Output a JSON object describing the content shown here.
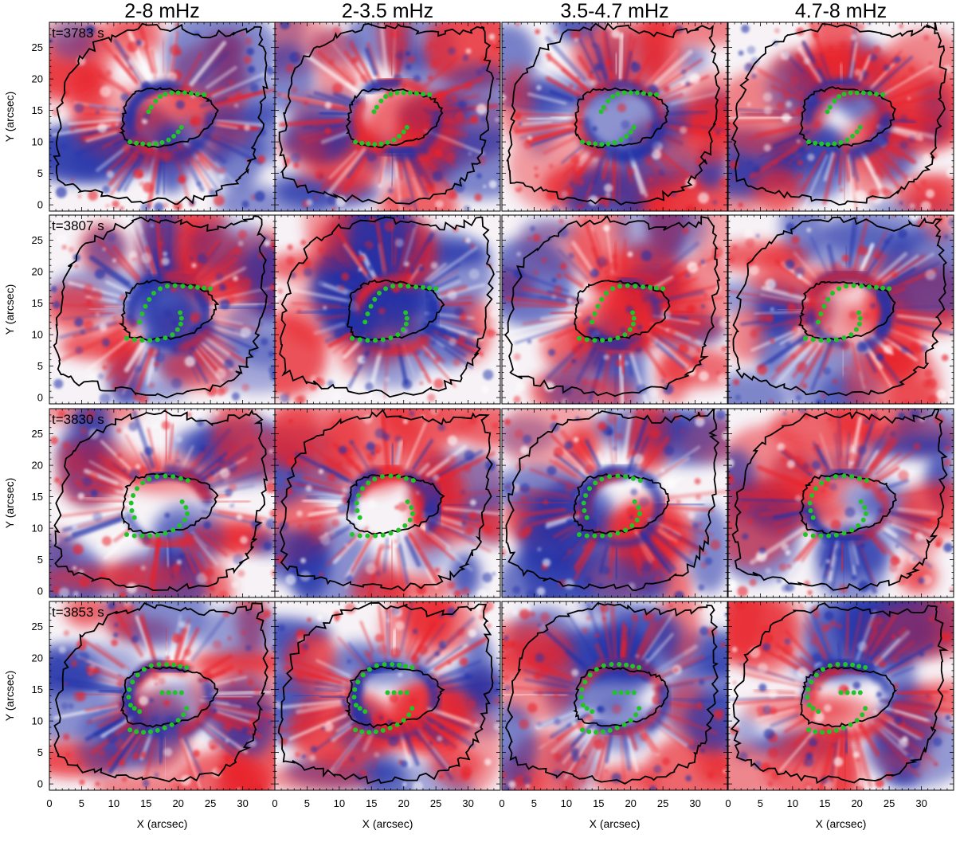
{
  "chart_data": {
    "type": "heatmap",
    "title": "",
    "xlabel": "X (arcsec)",
    "ylabel": "Y (arcsec)",
    "xlim": [
      0,
      35
    ],
    "ylim": [
      -1,
      29
    ],
    "xticks": [
      0,
      5,
      10,
      15,
      20,
      25,
      30
    ],
    "yticks": [
      0,
      5,
      10,
      15,
      20,
      25
    ],
    "columns": [
      "2-8 mHz",
      "2-3.5 mHz",
      "3.5-4.7 mHz",
      "4.7-8 mHz"
    ],
    "rows": [
      "t=3783 s",
      "t=3807 s",
      "t=3830 s",
      "t=3853 s"
    ],
    "colormap": {
      "positive": "#e8202a",
      "zero": "#ffffff",
      "negative": "#2433a8"
    },
    "contour_color": "#000000",
    "marker_color": "#22c328",
    "umbra_boundary": [
      [
        11.5,
        14.0
      ],
      [
        12.0,
        16.5
      ],
      [
        13.5,
        18.0
      ],
      [
        16.0,
        18.5
      ],
      [
        19.0,
        18.3
      ],
      [
        22.0,
        17.8
      ],
      [
        24.5,
        17.0
      ],
      [
        26.0,
        15.0
      ],
      [
        25.0,
        12.5
      ],
      [
        22.5,
        10.5
      ],
      [
        19.0,
        9.5
      ],
      [
        15.5,
        9.2
      ],
      [
        12.5,
        9.8
      ],
      [
        11.3,
        11.5
      ]
    ],
    "penumbra_boundary": [
      [
        1.5,
        4.0
      ],
      [
        1.0,
        9.0
      ],
      [
        1.5,
        15.0
      ],
      [
        3.0,
        20.5
      ],
      [
        6.0,
        24.5
      ],
      [
        10.0,
        27.0
      ],
      [
        15.0,
        28.3
      ],
      [
        20.0,
        28.0
      ],
      [
        25.0,
        27.0
      ],
      [
        29.0,
        27.5
      ],
      [
        32.5,
        28.5
      ],
      [
        33.0,
        24.0
      ],
      [
        33.5,
        19.0
      ],
      [
        33.0,
        14.0
      ],
      [
        32.0,
        9.0
      ],
      [
        31.0,
        6.0
      ],
      [
        29.0,
        3.5
      ],
      [
        25.5,
        1.5
      ],
      [
        20.0,
        0.5
      ],
      [
        14.0,
        0.7
      ],
      [
        9.0,
        1.5
      ],
      [
        5.0,
        2.5
      ]
    ],
    "wave_fronts": [
      {
        "time": "t=3783 s",
        "points": [
          [
            16.5,
            16.5
          ],
          [
            17.2,
            17.2
          ],
          [
            18.0,
            17.6
          ],
          [
            19.0,
            17.8
          ],
          [
            20.0,
            17.8
          ],
          [
            21.0,
            17.8
          ],
          [
            22.0,
            17.7
          ],
          [
            23.0,
            17.6
          ],
          [
            24.0,
            17.5
          ],
          [
            15.8,
            15.5
          ],
          [
            15.4,
            14.8
          ],
          [
            12.5,
            10.0
          ],
          [
            13.5,
            9.8
          ],
          [
            14.5,
            9.7
          ],
          [
            15.5,
            9.6
          ],
          [
            16.5,
            9.7
          ],
          [
            17.5,
            9.9
          ],
          [
            18.5,
            10.3
          ],
          [
            19.3,
            10.9
          ],
          [
            20.0,
            11.6
          ],
          [
            20.5,
            12.3
          ]
        ]
      },
      {
        "time": "t=3807 s",
        "points": [
          [
            14.0,
            12.0
          ],
          [
            14.4,
            13.3
          ],
          [
            14.9,
            14.5
          ],
          [
            15.5,
            15.6
          ],
          [
            16.2,
            16.6
          ],
          [
            17.2,
            17.3
          ],
          [
            18.3,
            17.7
          ],
          [
            19.5,
            17.8
          ],
          [
            20.7,
            17.7
          ],
          [
            21.9,
            17.6
          ],
          [
            23.0,
            17.5
          ],
          [
            24.0,
            17.4
          ],
          [
            25.0,
            17.3
          ],
          [
            12.0,
            9.4
          ],
          [
            13.2,
            9.2
          ],
          [
            14.4,
            9.1
          ],
          [
            15.6,
            9.1
          ],
          [
            16.8,
            9.2
          ],
          [
            18.0,
            9.5
          ],
          [
            19.1,
            10.0
          ],
          [
            19.9,
            10.8
          ],
          [
            20.4,
            11.7
          ],
          [
            20.5,
            12.6
          ],
          [
            20.3,
            13.5
          ]
        ]
      },
      {
        "time": "t=3830 s",
        "points": [
          [
            13.2,
            11.7
          ],
          [
            12.8,
            12.8
          ],
          [
            12.7,
            14.0
          ],
          [
            13.0,
            15.2
          ],
          [
            13.6,
            16.3
          ],
          [
            14.5,
            17.2
          ],
          [
            15.5,
            17.8
          ],
          [
            16.7,
            18.2
          ],
          [
            18.0,
            18.3
          ],
          [
            19.2,
            18.2
          ],
          [
            20.4,
            17.9
          ],
          [
            21.5,
            17.6
          ],
          [
            12.0,
            9.0
          ],
          [
            13.2,
            8.8
          ],
          [
            14.4,
            8.8
          ],
          [
            15.6,
            8.8
          ],
          [
            16.8,
            8.9
          ],
          [
            18.0,
            9.2
          ],
          [
            19.2,
            9.7
          ],
          [
            20.2,
            10.4
          ],
          [
            21.0,
            11.3
          ],
          [
            21.4,
            12.3
          ],
          [
            21.2,
            13.3
          ],
          [
            20.6,
            14.2
          ]
        ]
      },
      {
        "time": "t=3853 s",
        "points": [
          [
            12.6,
            12.5
          ],
          [
            12.3,
            13.8
          ],
          [
            12.4,
            15.0
          ],
          [
            12.9,
            16.2
          ],
          [
            13.7,
            17.3
          ],
          [
            14.7,
            18.2
          ],
          [
            15.8,
            18.8
          ],
          [
            17.0,
            19.0
          ],
          [
            18.2,
            19.0
          ],
          [
            19.3,
            18.9
          ],
          [
            20.3,
            18.7
          ],
          [
            21.3,
            18.5
          ],
          [
            14.0,
            11.5
          ],
          [
            13.2,
            12.0
          ],
          [
            17.5,
            14.5
          ],
          [
            18.5,
            14.5
          ],
          [
            19.5,
            14.5
          ],
          [
            20.5,
            14.5
          ],
          [
            12.5,
            8.6
          ],
          [
            13.5,
            8.3
          ],
          [
            14.6,
            8.2
          ],
          [
            15.7,
            8.3
          ],
          [
            16.8,
            8.5
          ],
          [
            17.9,
            8.9
          ],
          [
            19.0,
            9.4
          ],
          [
            20.0,
            10.1
          ],
          [
            20.8,
            11.0
          ],
          [
            21.3,
            12.0
          ]
        ]
      }
    ]
  }
}
